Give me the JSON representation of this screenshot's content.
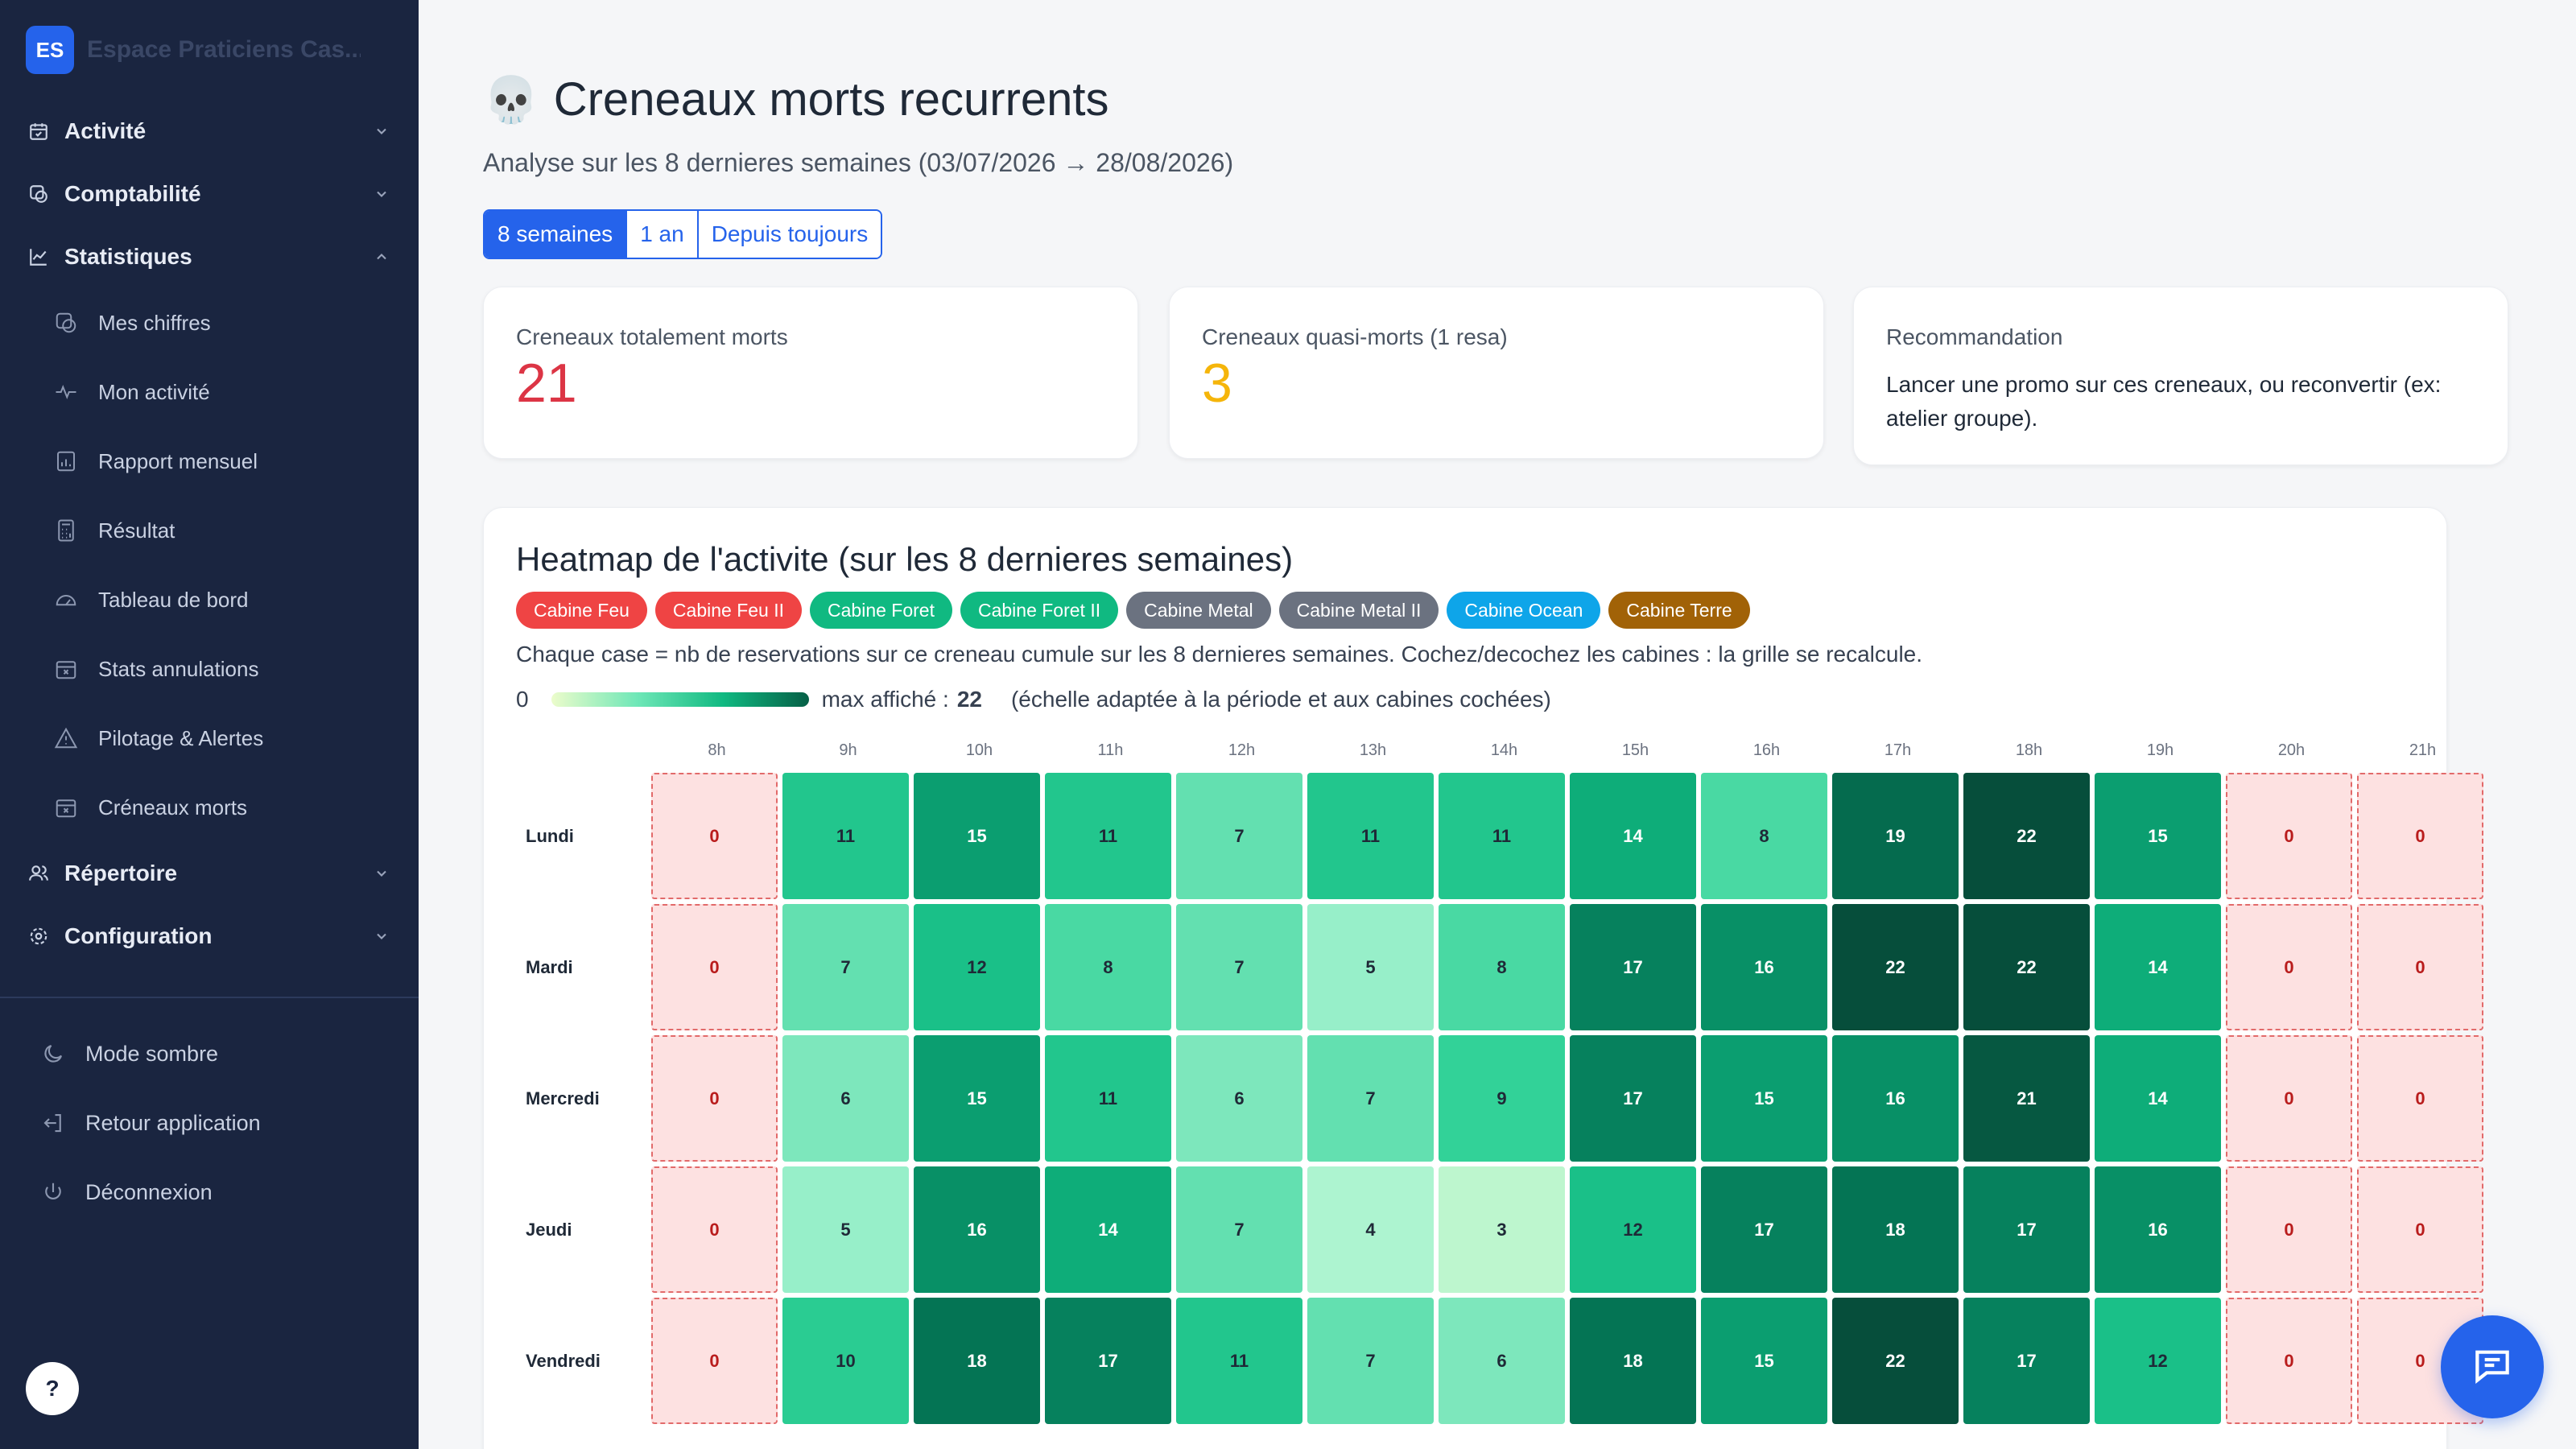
{
  "sidebar": {
    "logo": "ES",
    "brand": "Espace Praticiens Cas...",
    "groups": {
      "activite": "Activité",
      "comptabilite": "Comptabilité",
      "statistiques": "Statistiques",
      "repertoire": "Répertoire",
      "configuration": "Configuration"
    },
    "stats_items": [
      "Mes chiffres",
      "Mon activité",
      "Rapport mensuel",
      "Résultat",
      "Tableau de bord",
      "Stats annulations",
      "Pilotage & Alertes",
      "Créneaux morts"
    ],
    "bottom": {
      "dark": "Mode sombre",
      "back": "Retour application",
      "logout": "Déconnexion"
    },
    "help": "?"
  },
  "main": {
    "title": "Creneaux morts recurrents",
    "title_icon": "💀",
    "subtitle": "Analyse sur les 8 dernieres semaines (03/07/2026 → 28/08/2026)",
    "periods": [
      "8 semaines",
      "1 an",
      "Depuis toujours"
    ],
    "active_period": "8 semaines",
    "cards": {
      "dead_label": "Creneaux totalement morts",
      "dead_value": "21",
      "almost_label": "Creneaux quasi-morts (1 resa)",
      "almost_value": "3",
      "reco_label": "Recommandation",
      "reco_text": "Lancer une promo sur ces creneaux, ou reconvertir (ex: atelier groupe)."
    },
    "heatmap": {
      "title": "Heatmap de l'activite (sur les 8 dernieres semaines)",
      "cabins": [
        {
          "name": "Cabine Feu",
          "color": "#ef4444"
        },
        {
          "name": "Cabine Feu II",
          "color": "#ef4444"
        },
        {
          "name": "Cabine Foret",
          "color": "#10b981"
        },
        {
          "name": "Cabine Foret II",
          "color": "#10b981"
        },
        {
          "name": "Cabine Metal",
          "color": "#6b7280"
        },
        {
          "name": "Cabine Metal II",
          "color": "#6b7280"
        },
        {
          "name": "Cabine Ocean",
          "color": "#0ea5e9"
        },
        {
          "name": "Cabine Terre",
          "color": "#a16207"
        }
      ],
      "description": "Chaque case = nb de reservations sur ce creneau cumule sur les 8 dernieres semaines. Cochez/decochez les cabines : la grille se recalcule.",
      "legend_min": "0",
      "legend_max_label": "max affiché :",
      "legend_max": "22",
      "legend_note": "(échelle adaptée à la période et aux cabines cochées)",
      "hours": [
        "8h",
        "9h",
        "10h",
        "11h",
        "12h",
        "13h",
        "14h",
        "15h",
        "16h",
        "17h",
        "18h",
        "19h",
        "20h",
        "21h"
      ],
      "rows": [
        {
          "day": "Lundi",
          "values": [
            0,
            11,
            15,
            11,
            7,
            11,
            11,
            14,
            8,
            19,
            22,
            15,
            0,
            0
          ]
        },
        {
          "day": "Mardi",
          "values": [
            0,
            7,
            12,
            8,
            7,
            5,
            8,
            17,
            16,
            22,
            22,
            14,
            0,
            0
          ]
        },
        {
          "day": "Mercredi",
          "values": [
            0,
            6,
            15,
            11,
            6,
            7,
            9,
            17,
            15,
            16,
            21,
            14,
            0,
            0
          ]
        },
        {
          "day": "Jeudi",
          "values": [
            0,
            5,
            16,
            14,
            7,
            4,
            3,
            12,
            17,
            18,
            17,
            16,
            0,
            0
          ]
        },
        {
          "day": "Vendredi",
          "values": [
            0,
            10,
            18,
            17,
            11,
            7,
            6,
            18,
            15,
            22,
            17,
            12,
            0,
            0
          ]
        }
      ],
      "max": 22
    }
  }
}
